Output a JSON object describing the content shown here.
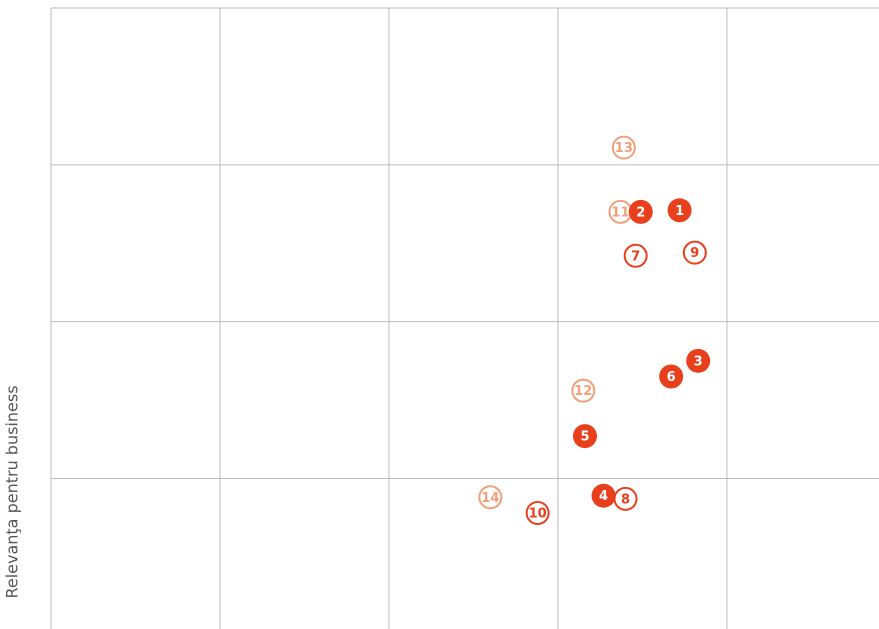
{
  "chart_data": {
    "type": "scatter",
    "ylabel": "Relevanţa pentru business",
    "xlim": [
      0,
      4.9
    ],
    "ylim": [
      0.04,
      4
    ],
    "xticks": [
      0,
      1,
      2,
      3,
      4
    ],
    "yticks": [
      1,
      2,
      3,
      4
    ],
    "grid": true,
    "series": [
      {
        "color": "#f0a07a",
        "style": "outline",
        "labels": [
          11,
          12,
          13,
          14
        ],
        "x": [
          3.37,
          3.15,
          3.39,
          2.6
        ],
        "values": [
          2.7,
          1.56,
          3.11,
          0.88
        ]
      },
      {
        "color": "#e8401c",
        "style": "filled",
        "labels": [
          1,
          2,
          3,
          4,
          5,
          6
        ],
        "x": [
          3.72,
          3.49,
          3.83,
          3.27,
          3.16,
          3.67
        ],
        "values": [
          2.71,
          2.7,
          1.75,
          0.89,
          1.27,
          1.65
        ]
      },
      {
        "color": "#e8401c",
        "style": "outline",
        "labels": [
          7,
          8,
          9,
          10
        ],
        "x": [
          3.46,
          3.4,
          3.81,
          2.88
        ],
        "values": [
          2.42,
          0.87,
          2.44,
          0.78
        ]
      }
    ]
  }
}
